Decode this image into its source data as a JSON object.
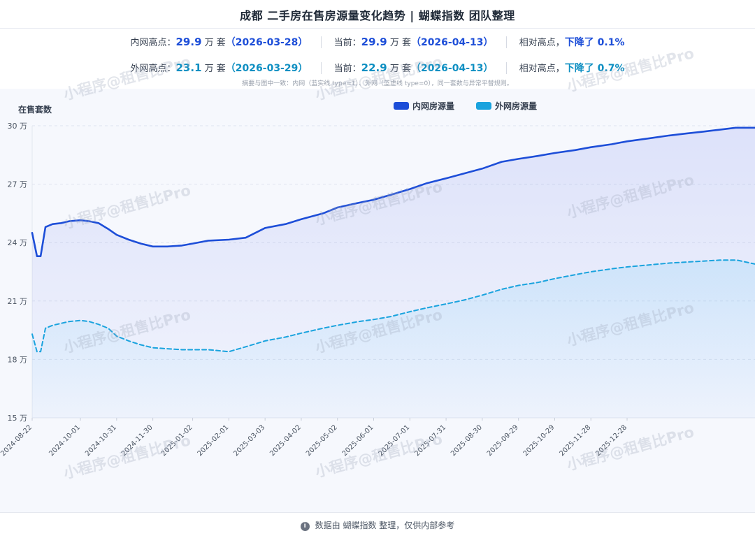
{
  "header": {
    "title": "成都 二手房在售房源量变化趋势 | 蝴蝶指数 团队整理"
  },
  "summary": {
    "inner": {
      "high_label": "内网高点：",
      "high_value": "29.9",
      "high_unit": "万 套",
      "high_date": "（2026-03-28）",
      "current_label": "当前：",
      "current_value": "29.9",
      "current_unit": "万 套",
      "current_date": "（2026-04-13）",
      "relative_label": "相对高点，",
      "relative_value": "下降了 0.1%"
    },
    "outer": {
      "high_label": "外网高点：",
      "high_value": "23.1",
      "high_unit": "万 套",
      "high_date": "（2026-03-29）",
      "current_label": "当前：",
      "current_value": "22.9",
      "current_unit": "万 套",
      "current_date": "（2026-04-13）",
      "relative_label": "相对高点，",
      "relative_value": "下降了 0.7%"
    },
    "note": "摘要与图中一致：内网（蓝实线 type=1）、外网（蓝虚线 type=0），同一套数与异常平替规则。"
  },
  "watermark": "小程序@租售比Pro",
  "footer": {
    "icon": "info-icon",
    "text": "数据由 蝴蝶指数 整理，仅供内部参考"
  },
  "colors": {
    "inner": "#1d4ed8",
    "outer": "#1aa3de"
  },
  "chart_data": {
    "type": "line",
    "ylabel": "在售套数",
    "ylim": [
      15,
      30
    ],
    "yticks": [
      "15 万",
      "18 万",
      "21 万",
      "24 万",
      "27 万",
      "30 万"
    ],
    "ytick_values": [
      15,
      18,
      21,
      24,
      27,
      30
    ],
    "xlim": [
      "2024-08-22",
      "2026-04-13"
    ],
    "xticks": [
      "2024-08-22",
      "2024-10-01",
      "2024-10-31",
      "2024-11-30",
      "2025-01-02",
      "2025-02-01",
      "2025-03-03",
      "2025-04-02",
      "2025-05-02",
      "2025-06-01",
      "2025-07-01",
      "2025-07-31",
      "2025-08-30",
      "2025-09-29",
      "2025-10-29",
      "2025-11-28",
      "2025-12-28"
    ],
    "legend": "top-center",
    "grid": true,
    "series": [
      {
        "name": "内网房源量",
        "style": "solid",
        "x": [
          "2024-08-22",
          "2024-08-26",
          "2024-08-29",
          "2024-09-02",
          "2024-09-08",
          "2024-09-15",
          "2024-09-22",
          "2024-10-01",
          "2024-10-08",
          "2024-10-16",
          "2024-10-24",
          "2024-10-31",
          "2024-11-10",
          "2024-11-20",
          "2024-11-30",
          "2024-12-12",
          "2024-12-24",
          "2025-01-02",
          "2025-01-15",
          "2025-02-01",
          "2025-02-15",
          "2025-03-03",
          "2025-03-20",
          "2025-04-02",
          "2025-04-20",
          "2025-05-02",
          "2025-05-20",
          "2025-06-01",
          "2025-06-15",
          "2025-07-01",
          "2025-07-15",
          "2025-07-31",
          "2025-08-15",
          "2025-08-30",
          "2025-09-15",
          "2025-09-29",
          "2025-10-15",
          "2025-10-29",
          "2025-11-15",
          "2025-11-28",
          "2025-12-15",
          "2025-12-28",
          "2026-01-15",
          "2026-02-01",
          "2026-02-15",
          "2026-03-01",
          "2026-03-15",
          "2026-03-28",
          "2026-04-13"
        ],
        "values": [
          24.5,
          23.3,
          23.3,
          24.8,
          24.95,
          25.0,
          25.1,
          25.15,
          25.1,
          25.0,
          24.7,
          24.4,
          24.15,
          23.95,
          23.8,
          23.8,
          23.85,
          23.95,
          24.1,
          24.15,
          24.25,
          24.75,
          24.95,
          25.2,
          25.5,
          25.8,
          26.05,
          26.2,
          26.45,
          26.75,
          27.05,
          27.3,
          27.55,
          27.8,
          28.15,
          28.3,
          28.45,
          28.6,
          28.75,
          28.9,
          29.05,
          29.2,
          29.35,
          29.5,
          29.6,
          29.7,
          29.8,
          29.9,
          29.9
        ]
      },
      {
        "name": "外网房源量",
        "style": "dashed",
        "x": [
          "2024-08-22",
          "2024-08-26",
          "2024-08-29",
          "2024-09-02",
          "2024-09-08",
          "2024-09-15",
          "2024-09-22",
          "2024-10-01",
          "2024-10-08",
          "2024-10-16",
          "2024-10-24",
          "2024-10-31",
          "2024-11-10",
          "2024-11-20",
          "2024-11-30",
          "2024-12-12",
          "2024-12-24",
          "2025-01-02",
          "2025-01-15",
          "2025-02-01",
          "2025-02-15",
          "2025-03-03",
          "2025-03-20",
          "2025-04-02",
          "2025-04-20",
          "2025-05-02",
          "2025-05-20",
          "2025-06-01",
          "2025-06-15",
          "2025-07-01",
          "2025-07-15",
          "2025-07-31",
          "2025-08-15",
          "2025-08-30",
          "2025-09-15",
          "2025-09-29",
          "2025-10-15",
          "2025-10-29",
          "2025-11-15",
          "2025-11-28",
          "2025-12-15",
          "2025-12-28",
          "2026-01-15",
          "2026-02-01",
          "2026-02-15",
          "2026-03-01",
          "2026-03-15",
          "2026-03-29",
          "2026-04-13"
        ],
        "values": [
          19.3,
          18.4,
          18.4,
          19.6,
          19.75,
          19.85,
          19.95,
          20.0,
          19.95,
          19.8,
          19.6,
          19.2,
          18.95,
          18.75,
          18.6,
          18.55,
          18.5,
          18.5,
          18.5,
          18.4,
          18.65,
          18.95,
          19.15,
          19.35,
          19.6,
          19.75,
          19.95,
          20.05,
          20.2,
          20.45,
          20.65,
          20.85,
          21.05,
          21.3,
          21.6,
          21.8,
          21.95,
          22.15,
          22.35,
          22.5,
          22.65,
          22.75,
          22.85,
          22.95,
          23.0,
          23.05,
          23.1,
          23.1,
          22.9
        ]
      }
    ]
  }
}
